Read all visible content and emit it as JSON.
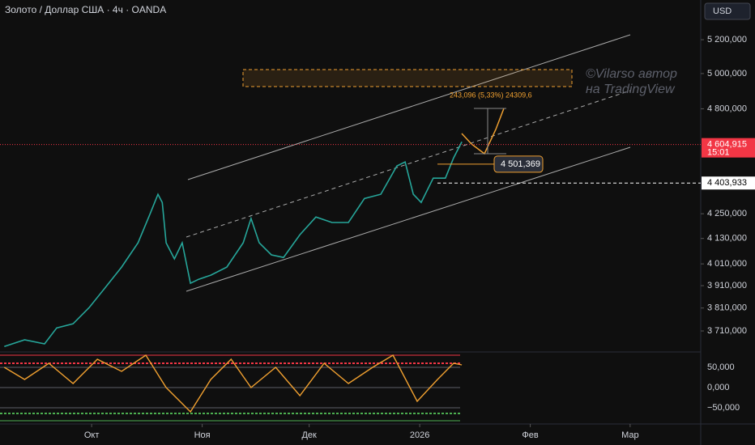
{
  "chart_data": {
    "type": "line",
    "title": "Золото / Доллар США · 4ч · OANDA",
    "currency": "USD",
    "watermark": [
      "©Vilarso автор",
      "на TradingView"
    ],
    "log_scale": true,
    "x": [
      -24.5,
      -18.8,
      -13.2,
      -9.8,
      -5.2,
      -0.7,
      3.9,
      8.4,
      13.0,
      16.3,
      18.6,
      19.8,
      20.9,
      23.2,
      25.4,
      27.7,
      30.0,
      33.4,
      37.9,
      42.5,
      44.7,
      47.0,
      50.4,
      53.8,
      58.4,
      62.9,
      67.4,
      72.0,
      76.5,
      81.1,
      85.6,
      87.9,
      90.2,
      92.4,
      95.8,
      99.2,
      101.5,
      103.8
    ],
    "series": [
      {
        "color": "#26a69a",
        "values": [
          3644,
          3672,
          3655,
          3723,
          3741,
          3812,
          3903,
          3995,
          4109,
          4246,
          4347,
          4306,
          4109,
          4033,
          4109,
          3921,
          3939,
          3958,
          3995,
          4109,
          4227,
          4109,
          4052,
          4040,
          4148,
          4234,
          4207,
          4207,
          4326,
          4347,
          4492,
          4513,
          4347,
          4306,
          4429,
          4429,
          4534,
          4620
        ]
      }
    ],
    "xlim": [
      -25.7,
      170.8
    ],
    "xticks": [
      {
        "value": 0,
        "label": "Окт"
      },
      {
        "value": 31,
        "label": "Ноя"
      },
      {
        "value": 61,
        "label": "Дек"
      },
      {
        "value": 92,
        "label": "2026"
      },
      {
        "value": 123,
        "label": "Фев"
      },
      {
        "value": 151,
        "label": "Мар"
      }
    ],
    "ylim": [
      3631,
      5445
    ],
    "yticks": [
      {
        "value": 5200,
        "label": "5 200,000"
      },
      {
        "value": 5000,
        "label": "5 000,000"
      },
      {
        "value": 4800,
        "label": "4 800,000"
      },
      {
        "value": 4250,
        "label": "4 250,000"
      },
      {
        "value": 4130,
        "label": "4 130,000"
      },
      {
        "value": 4010,
        "label": "4 010,000"
      },
      {
        "value": 3910,
        "label": "3 910,000"
      },
      {
        "value": 3810,
        "label": "3 810,000"
      },
      {
        "value": 3710,
        "label": "3 710,000"
      }
    ],
    "price_markers": [
      {
        "value": 4604.915,
        "label": "4 604,915",
        "time": "15:01",
        "color": "#f23645"
      },
      {
        "value": 4403.933,
        "label": "4 403,933",
        "color": "#ffffff"
      },
      {
        "value": 4501.369,
        "label": "4 501,369",
        "color": "#f0a030"
      }
    ],
    "annotation": "243,096 (5,33%) 24309,6",
    "oscillator": {
      "x": [
        -24.5,
        -18.8,
        -12.0,
        -5.2,
        1.6,
        8.4,
        15.2,
        20.9,
        27.7,
        33.4,
        39.1,
        44.7,
        51.6,
        58.4,
        65.2,
        72.0,
        78.8,
        84.5,
        91.3,
        97.0,
        101.5,
        103.8
      ],
      "values": [
        50,
        20,
        60,
        10,
        70,
        40,
        80,
        0,
        -60,
        20,
        70,
        0,
        50,
        -20,
        60,
        10,
        50,
        80,
        -34,
        20,
        60,
        56
      ],
      "color": "#f0a030",
      "ylim": [
        -86,
        84
      ],
      "yticks": [
        {
          "value": 50,
          "label": "50,000"
        },
        {
          "value": 0,
          "label": "0,000"
        },
        {
          "value": -50,
          "label": "−50,000"
        }
      ]
    }
  }
}
